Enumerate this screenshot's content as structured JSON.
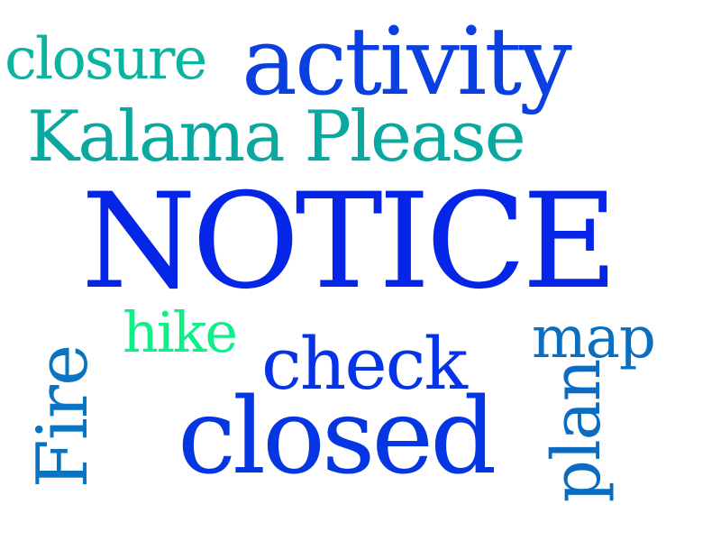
{
  "cloud": {
    "words": [
      {
        "key": "closure",
        "text": "closure",
        "color": "#0bb4a0"
      },
      {
        "key": "activity",
        "text": "activity",
        "color": "#0a3fe0"
      },
      {
        "key": "kalama",
        "text": "Kalama Please",
        "color": "#0aa8a0"
      },
      {
        "key": "notice",
        "text": "NOTICE",
        "color": "#0526e6"
      },
      {
        "key": "hike",
        "text": "hike",
        "color": "#10ee88"
      },
      {
        "key": "map",
        "text": "map",
        "color": "#0a6fc0"
      },
      {
        "key": "check",
        "text": "check",
        "color": "#0633e8"
      },
      {
        "key": "closed",
        "text": "closed",
        "color": "#0436e2"
      },
      {
        "key": "fire",
        "text": "Fire",
        "color": "#0a74c2"
      },
      {
        "key": "plan",
        "text": "plan",
        "color": "#0a6cc0"
      }
    ]
  }
}
